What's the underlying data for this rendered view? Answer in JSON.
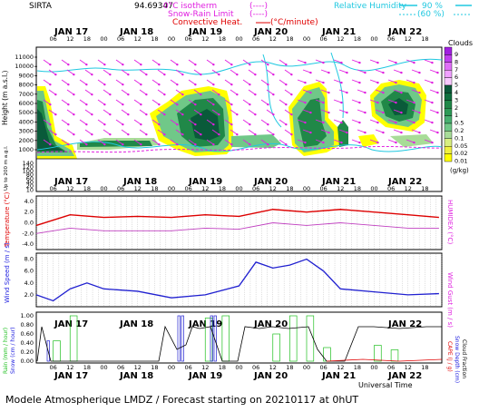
{
  "header": {
    "station": "SIRTA",
    "value_text": "94.69347",
    "legend_isotherm": "0°C isotherm",
    "legend_isotherm_sym": "(----)",
    "legend_snowrain": "Snow-Rain Limit",
    "legend_snowrain_sym": "(----)",
    "legend_convective": "Convective Heat.",
    "legend_convective_sym": "(°C/minute)",
    "legend_rh": "Relative Humidity",
    "legend_rh_90": "90 %",
    "legend_rh_60": "(60 %)"
  },
  "axes": {
    "days": [
      "JAN 17",
      "JAN 18",
      "JAN 19",
      "JAN 20",
      "JAN 21",
      "JAN 22"
    ],
    "hours_top": [
      "06",
      "12",
      "18",
      "00",
      "06",
      "12",
      "18",
      "00",
      "06",
      "12",
      "18",
      "00",
      "06",
      "12",
      "18",
      "00",
      "06",
      "12",
      "18",
      "00",
      "06",
      "12",
      "18"
    ],
    "hours_bottom": [
      "06",
      "12",
      "18",
      "00",
      "06",
      "12",
      "18",
      "00",
      "06",
      "12",
      "18",
      "00",
      "06",
      "12",
      "18",
      "00",
      "06",
      "12",
      "18",
      "00",
      "06",
      "12",
      "18"
    ],
    "universal_time": "Universal Time"
  },
  "panel_clouds": {
    "title": "Clouds",
    "ylabel": "Height (m a.s.l.)",
    "ylabel2": "Up to 200 m a.g.l.",
    "yticks": [
      "11000",
      "10000",
      "9000",
      "8000",
      "7000",
      "6000",
      "5000",
      "4000",
      "3000",
      "2000",
      "1000"
    ],
    "yticks_low": [
      "140",
      "120",
      "100",
      "80",
      "60",
      "40",
      "20",
      "10"
    ],
    "colorbar_labels": [
      "9",
      "8",
      "7",
      "6",
      "5",
      "4",
      "3",
      "2",
      "1",
      "0.5",
      "0.2",
      "0.1",
      "0.05",
      "0.02",
      "0.01"
    ],
    "colorbar_unit": "(g/kg)",
    "colorbar_colors": [
      "#a020e0",
      "#c040f0",
      "#e070f8",
      "#f0a0ff",
      "#f8c8ff",
      "#0a5a3a",
      "#10703f",
      "#208848",
      "#2e9a57",
      "#48b070",
      "#70c888",
      "#a8dc98",
      "#d8ee80",
      "#f0f040",
      "#ffff00"
    ]
  },
  "panel_temperature": {
    "ylabel": "Temperature (°C)",
    "ylabel2": "HUMIDEX (°C)",
    "yticks": [
      "4.0",
      "2.0",
      "0.0",
      "-2.0",
      "-4.0"
    ]
  },
  "panel_wind": {
    "ylabel": "Wind Speed (m / s)",
    "ylabel2": "Wind Gust (m / s)",
    "yticks": [
      "8.0",
      "6.0",
      "4.0",
      "2.0"
    ]
  },
  "panel_precip": {
    "ylabel": "Rain (mm / hour)",
    "ylabel_b": "Snow (cm / hour)",
    "ylabel2": "CAPE (J / g)",
    "ylabel2_b": "Snow Depth (cm)",
    "ylabel2_c": "Cloud Fraction",
    "yticks": [
      "1.00",
      "0.80",
      "0.60",
      "0.40",
      "0.20",
      "0.00"
    ]
  },
  "footer": "Modele Atmospherique LMDZ / Forecast starting on 20210117 at 0hUT",
  "colors": {
    "temperature": "#dd0000",
    "humidex": "#c040c0",
    "wind": "#2020d0",
    "isotherm": "#e020e0",
    "rh": "#20c8e0"
  },
  "chart_data": [
    {
      "type": "heatmap",
      "title": "Clouds",
      "ylabel": "Height (m a.s.l.)",
      "unit": "(g/kg)",
      "ylim": [
        0,
        11500
      ],
      "x": [
        "JAN 17 00",
        "JAN 17 12",
        "JAN 18 00",
        "JAN 18 12",
        "JAN 19 00",
        "JAN 19 12",
        "JAN 20 00",
        "JAN 20 12",
        "JAN 21 00",
        "JAN 21 12",
        "JAN 22 00",
        "JAN 22 12"
      ],
      "cloud_top_m": [
        7500,
        3000,
        2000,
        2000,
        5000,
        6000,
        3000,
        7000,
        6000,
        4000,
        6500,
        6000
      ]
    },
    {
      "type": "line",
      "ylabel": "Temperature (°C)",
      "ylim": [
        -5,
        5
      ],
      "x": [
        "JAN 17 00",
        "JAN 17 12",
        "JAN 18 00",
        "JAN 18 12",
        "JAN 19 00",
        "JAN 19 12",
        "JAN 20 00",
        "JAN 20 12",
        "JAN 21 00",
        "JAN 21 12",
        "JAN 22 00",
        "JAN 22 12",
        "JAN 22 23"
      ],
      "series": [
        {
          "name": "Temperature",
          "values": [
            -0.5,
            1.5,
            1.0,
            1.2,
            1.0,
            1.5,
            1.2,
            2.5,
            2.0,
            2.5,
            2.0,
            1.5,
            1.0
          ]
        },
        {
          "name": "HUMIDEX",
          "values": [
            -2.0,
            -1.0,
            -1.5,
            -1.5,
            -1.5,
            -1.0,
            -1.2,
            0.0,
            -0.5,
            0.0,
            -0.5,
            -1.0,
            -1.0
          ]
        }
      ]
    },
    {
      "type": "line",
      "ylabel": "Wind Speed (m / s)",
      "ylim": [
        0,
        9
      ],
      "x": [
        "JAN 17 00",
        "JAN 17 06",
        "JAN 17 12",
        "JAN 17 18",
        "JAN 18 00",
        "JAN 18 12",
        "JAN 19 00",
        "JAN 19 12",
        "JAN 20 00",
        "JAN 20 06",
        "JAN 20 12",
        "JAN 20 18",
        "JAN 21 00",
        "JAN 21 06",
        "JAN 21 12",
        "JAN 22 00",
        "JAN 22 12",
        "JAN 22 23"
      ],
      "series": [
        {
          "name": "Wind Speed",
          "values": [
            2.0,
            1.0,
            3.0,
            4.0,
            3.0,
            2.6,
            1.5,
            2.0,
            3.5,
            7.5,
            6.5,
            7.0,
            8.0,
            6.0,
            3.0,
            2.5,
            2.0,
            2.2
          ]
        }
      ]
    },
    {
      "type": "bar",
      "ylabel": "Rain (mm / hour)",
      "ylim": [
        0,
        1.0
      ],
      "x": [
        "JAN 17 06",
        "JAN 17 12",
        "JAN 19 12",
        "JAN 19 18",
        "JAN 20 12",
        "JAN 20 18",
        "JAN 21 00",
        "JAN 21 06",
        "JAN 22 00",
        "JAN 22 06"
      ],
      "series": [
        {
          "name": "Rain",
          "values": [
            0.45,
            1.0,
            0.95,
            1.0,
            0.6,
            1.0,
            1.0,
            0.3,
            0.35,
            0.25
          ]
        }
      ]
    }
  ]
}
